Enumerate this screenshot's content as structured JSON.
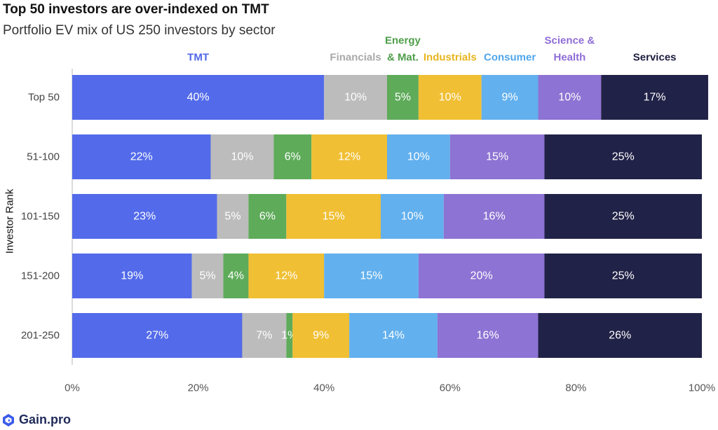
{
  "title": "Top 50 investors are over-indexed on TMT",
  "subtitle": "Portfolio EV mix of US 250 investors by sector",
  "logo_text": "Gain.pro",
  "chart_data": {
    "type": "bar",
    "orientation": "horizontal",
    "stacked": true,
    "percent": true,
    "ylabel": "Investor Rank",
    "xlim": [
      0,
      100
    ],
    "xticks": [
      0,
      20,
      40,
      60,
      80,
      100
    ],
    "xtick_labels": [
      "0%",
      "20%",
      "40%",
      "60%",
      "80%",
      "100%"
    ],
    "legend_position": "top",
    "categories": [
      "Top 50",
      "51-100",
      "101-150",
      "151-200",
      "201-250"
    ],
    "series": [
      {
        "name": "TMT",
        "legend_lines": [
          "TMT"
        ],
        "color": "#536bea",
        "label_color": "#4f66e8",
        "text_color": "#ffffff",
        "values": [
          40,
          22,
          23,
          19,
          27
        ]
      },
      {
        "name": "Financials",
        "legend_lines": [
          "Financials"
        ],
        "color": "#bcbcbc",
        "label_color": "#a9a9a9",
        "text_color": "#ffffff",
        "values": [
          10,
          10,
          5,
          5,
          7
        ]
      },
      {
        "name": "Energy & Mat.",
        "legend_lines": [
          "Energy",
          "& Mat."
        ],
        "color": "#5eab5a",
        "label_color": "#4e9d4a",
        "text_color": "#ffffff",
        "values": [
          5,
          6,
          6,
          4,
          1
        ]
      },
      {
        "name": "Industrials",
        "legend_lines": [
          "Industrials"
        ],
        "color": "#f0bf33",
        "label_color": "#e8b51e",
        "text_color": "#ffffff",
        "values": [
          10,
          12,
          15,
          12,
          9
        ]
      },
      {
        "name": "Consumer",
        "legend_lines": [
          "Consumer"
        ],
        "color": "#62b0ee",
        "label_color": "#4fa6ec",
        "text_color": "#ffffff",
        "values": [
          9,
          10,
          10,
          15,
          14
        ]
      },
      {
        "name": "Science & Health",
        "legend_lines": [
          "Science &",
          "Health"
        ],
        "color": "#8d73d3",
        "label_color": "#8e6dd6",
        "text_color": "#ffffff",
        "values": [
          10,
          15,
          16,
          20,
          16
        ]
      },
      {
        "name": "Services",
        "legend_lines": [
          "Services"
        ],
        "color": "#212247",
        "label_color": "#1c1d3f",
        "text_color": "#ffffff",
        "values": [
          17,
          25,
          25,
          25,
          26
        ]
      }
    ]
  }
}
